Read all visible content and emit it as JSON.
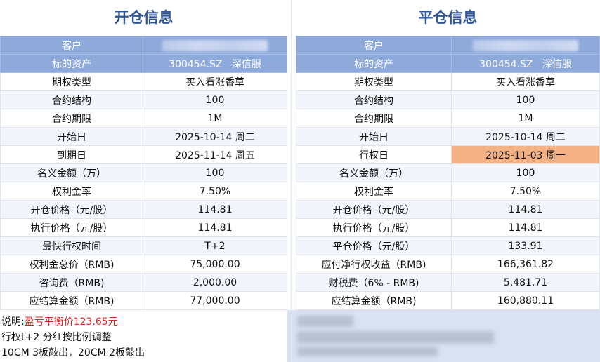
{
  "left": {
    "title": "开仓信息",
    "header_rows": [
      {
        "label": "客户",
        "value": ""
      },
      {
        "label": "标的资产",
        "value": "300454.SZ   深信服"
      }
    ],
    "rows": [
      {
        "label": "期权类型",
        "value": "买入看涨香草"
      },
      {
        "label": "合约结构",
        "value": "100"
      },
      {
        "label": "合约期限",
        "value": "1M"
      },
      {
        "label": "开始日",
        "value": "2025-10-14 周二"
      },
      {
        "label": "到期日",
        "value": "2025-11-14 周五"
      },
      {
        "label": "名义金额（万）",
        "value": "100"
      },
      {
        "label": "权利金率",
        "value": "7.50%"
      },
      {
        "label": "开仓价格（元/股）",
        "value": "114.81"
      },
      {
        "label": "执行价格（元/股）",
        "value": "114.81"
      },
      {
        "label": "最快行权时间",
        "value": "T+2"
      },
      {
        "label": "权利金总价（RMB)",
        "value": "75,000.00"
      },
      {
        "label": "咨询费（RMB)",
        "value": "2,000.00"
      },
      {
        "label": "应结算金额（RMB)",
        "value": "77,000.00"
      }
    ]
  },
  "right": {
    "title": "平仓信息",
    "header_rows": [
      {
        "label": "客户",
        "value": ""
      },
      {
        "label": "标的资产",
        "value": "300454.SZ   深信服"
      }
    ],
    "rows": [
      {
        "label": "期权类型",
        "value": "买入看涨香草"
      },
      {
        "label": "合约结构",
        "value": "100"
      },
      {
        "label": "合约期限",
        "value": "1M"
      },
      {
        "label": "开始日",
        "value": "2025-10-14 周二"
      },
      {
        "label": "行权日",
        "value": "2025-11-03 周一"
      },
      {
        "label": "名义金额（万）",
        "value": "100"
      },
      {
        "label": "权利金率",
        "value": "7.50%"
      },
      {
        "label": "开仓价格（元/股）",
        "value": "114.81"
      },
      {
        "label": "执行价格（元/股）",
        "value": "114.81"
      },
      {
        "label": "平仓价格（元/股）",
        "value": "133.91"
      },
      {
        "label": "应付净行权收益（RMB)",
        "value": "166,361.82"
      },
      {
        "label": "财税费（6% - RMB)",
        "value": "5,481.71"
      },
      {
        "label": "应结算金额（RMB)",
        "value": "160,880.11"
      }
    ]
  },
  "notes": {
    "prefix": "说明:",
    "highlight": "盈亏平衡价123.65元",
    "line2": "行权t+2 分红按比例调整",
    "line3": "10CM 3板敲出，20CM 2板敲出"
  },
  "colors": {
    "title": "#2f5597",
    "header_bg": "#8eaadb",
    "alt_row_bg": "#f2f6fc",
    "highlight_cell": "#f4b183",
    "note_red": "#e02020"
  }
}
